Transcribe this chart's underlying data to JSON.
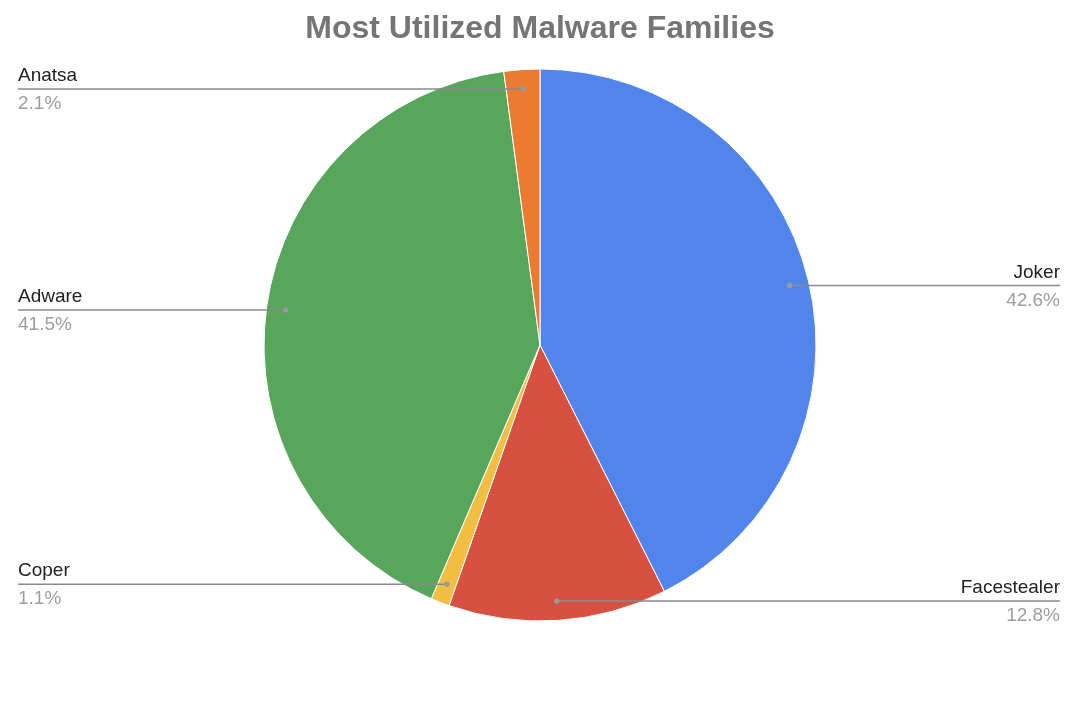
{
  "chart_data": {
    "type": "pie",
    "title": "Most Utilized Malware Families",
    "categories": [
      "Joker",
      "Facestealer",
      "Coper",
      "Adware",
      "Anatsa"
    ],
    "values": [
      42.6,
      12.8,
      1.1,
      41.5,
      2.1
    ],
    "value_labels": [
      "42.6%",
      "12.8%",
      "1.1%",
      "41.5%",
      "2.1%"
    ],
    "colors": [
      "#5185ec",
      "#d85140",
      "#f1be42",
      "#58a55c",
      "#ec7a31"
    ]
  }
}
